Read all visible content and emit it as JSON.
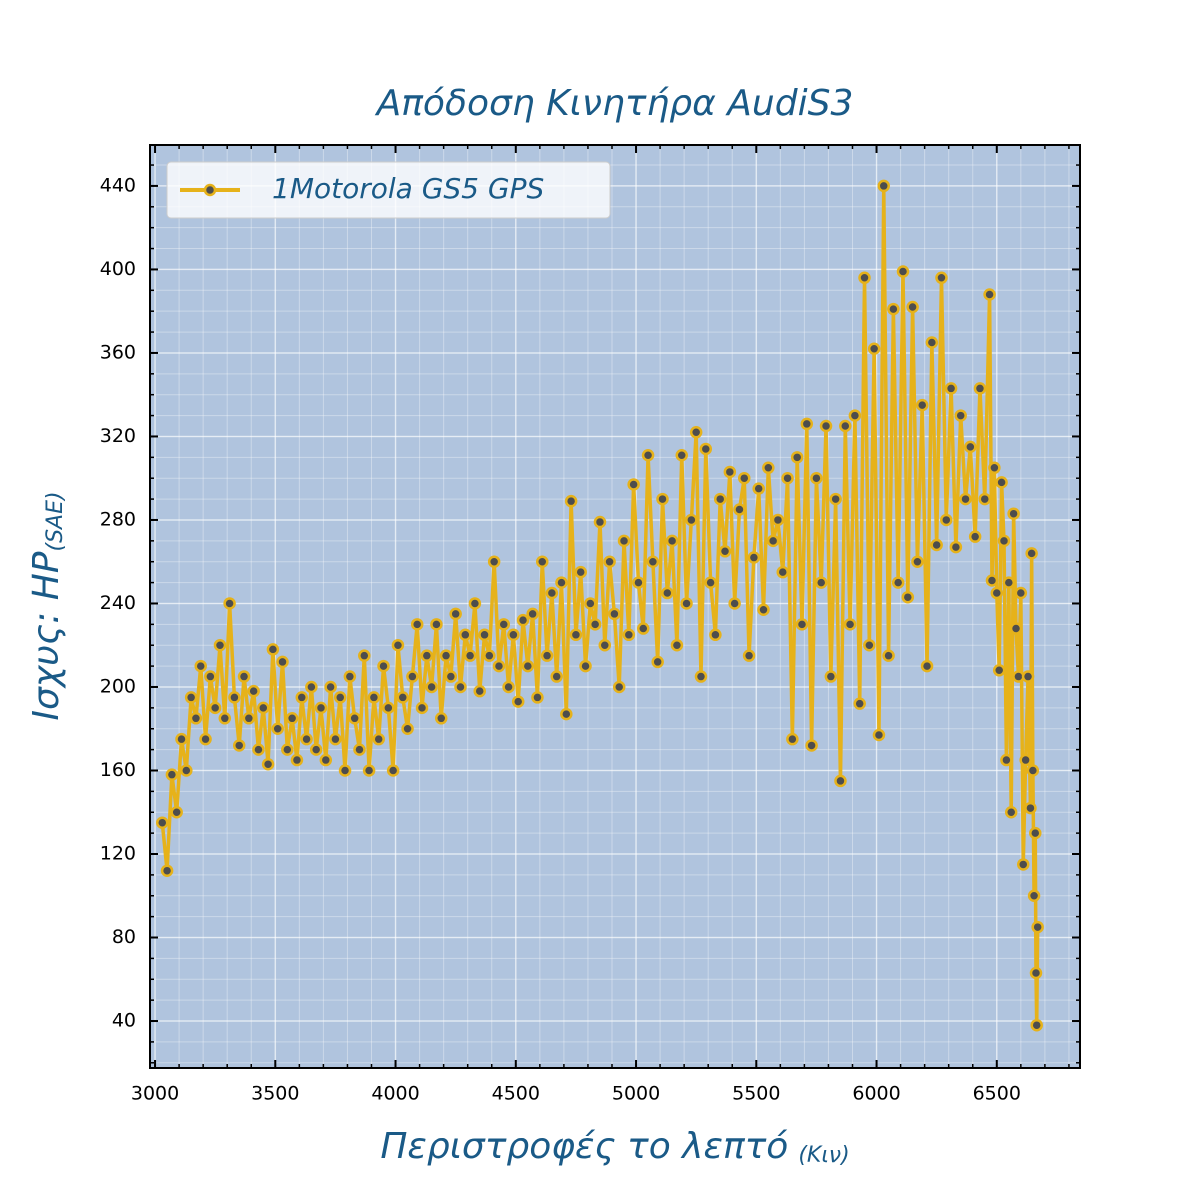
{
  "chart_data": {
    "type": "line",
    "title": "Απόδοση Κινητήρα AudiS3",
    "xlabel": "Περιστροφές το λεπτό",
    "xlabel_sub": "(Κιν)",
    "ylabel": "Ισχυς: HP",
    "ylabel_sub": "(SAE)",
    "xlim": [
      2979,
      6846
    ],
    "ylim": [
      17.5,
      459.6
    ],
    "xticks": [
      3000,
      3500,
      4000,
      4500,
      5000,
      5500,
      6000,
      6500
    ],
    "yticks": [
      40,
      80,
      120,
      160,
      200,
      240,
      280,
      320,
      360,
      400,
      440
    ],
    "xminor": 100,
    "yminor": 10,
    "grid": true,
    "legend": "upper left",
    "background": "#b0c4de",
    "x": [
      3030,
      3050,
      3070,
      3090,
      3110,
      3130,
      3150,
      3170,
      3190,
      3210,
      3230,
      3250,
      3270,
      3290,
      3310,
      3330,
      3350,
      3370,
      3390,
      3410,
      3430,
      3450,
      3470,
      3490,
      3510,
      3530,
      3550,
      3570,
      3590,
      3610,
      3630,
      3650,
      3670,
      3690,
      3710,
      3730,
      3750,
      3770,
      3790,
      3810,
      3830,
      3850,
      3870,
      3890,
      3910,
      3930,
      3950,
      3970,
      3990,
      4010,
      4030,
      4050,
      4070,
      4090,
      4110,
      4130,
      4150,
      4170,
      4190,
      4210,
      4230,
      4250,
      4270,
      4290,
      4310,
      4330,
      4350,
      4370,
      4390,
      4410,
      4430,
      4450,
      4470,
      4490,
      4510,
      4530,
      4550,
      4570,
      4590,
      4610,
      4630,
      4650,
      4670,
      4690,
      4710,
      4730,
      4750,
      4770,
      4790,
      4810,
      4830,
      4850,
      4870,
      4890,
      4910,
      4930,
      4950,
      4970,
      4990,
      5010,
      5030,
      5050,
      5070,
      5090,
      5110,
      5130,
      5150,
      5170,
      5190,
      5210,
      5230,
      5250,
      5270,
      5290,
      5310,
      5330,
      5350,
      5370,
      5390,
      5410,
      5430,
      5450,
      5470,
      5490,
      5510,
      5530,
      5550,
      5570,
      5590,
      5610,
      5630,
      5650,
      5670,
      5690,
      5710,
      5730,
      5750,
      5770,
      5790,
      5810,
      5830,
      5850,
      5870,
      5890,
      5910,
      5930,
      5950,
      5970,
      5990,
      6010,
      6030,
      6050,
      6070,
      6090,
      6110,
      6130,
      6150,
      6170,
      6190,
      6210,
      6230,
      6250,
      6270,
      6290,
      6310,
      6330,
      6350,
      6370,
      6390,
      6410,
      6430,
      6450,
      6470,
      6480,
      6490,
      6500,
      6510,
      6520,
      6530,
      6540,
      6550,
      6560,
      6570,
      6580,
      6590,
      6600,
      6610,
      6620,
      6630,
      6640,
      6645,
      6650,
      6655,
      6660,
      6663,
      6666,
      6670
    ],
    "series": [
      {
        "name": "1Motorola GS5 GPS",
        "color": "#e6b21a",
        "marker_color": "#4d4d4d",
        "values": [
          135,
          112,
          158,
          140,
          175,
          160,
          195,
          185,
          210,
          175,
          205,
          190,
          220,
          185,
          240,
          195,
          172,
          205,
          185,
          198,
          170,
          190,
          163,
          218,
          180,
          212,
          170,
          185,
          165,
          195,
          175,
          200,
          170,
          190,
          165,
          200,
          175,
          195,
          160,
          205,
          185,
          170,
          215,
          160,
          195,
          175,
          210,
          190,
          160,
          220,
          195,
          180,
          205,
          230,
          190,
          215,
          200,
          230,
          185,
          215,
          205,
          235,
          200,
          225,
          215,
          240,
          198,
          225,
          215,
          260,
          210,
          230,
          200,
          225,
          193,
          232,
          210,
          235,
          195,
          260,
          215,
          245,
          205,
          250,
          187,
          289,
          225,
          255,
          210,
          240,
          230,
          279,
          220,
          260,
          235,
          200,
          270,
          225,
          297,
          250,
          228,
          311,
          260,
          212,
          290,
          245,
          270,
          220,
          311,
          240,
          280,
          322,
          205,
          314,
          250,
          225,
          290,
          265,
          303,
          240,
          285,
          300,
          215,
          262,
          295,
          237,
          305,
          270,
          280,
          255,
          300,
          175,
          310,
          230,
          326,
          172,
          300,
          250,
          325,
          205,
          290,
          155,
          325,
          230,
          330,
          192,
          396,
          220,
          362,
          177,
          440,
          215,
          381,
          250,
          399,
          243,
          382,
          260,
          335,
          210,
          365,
          268,
          396,
          280,
          343,
          267,
          330,
          290,
          315,
          272,
          343,
          290,
          388,
          251,
          305,
          245,
          208,
          298,
          270,
          165,
          250,
          140,
          283,
          228,
          205,
          245,
          115,
          165,
          205,
          142,
          264,
          160,
          100,
          130,
          63,
          38,
          85
        ]
      }
    ]
  }
}
